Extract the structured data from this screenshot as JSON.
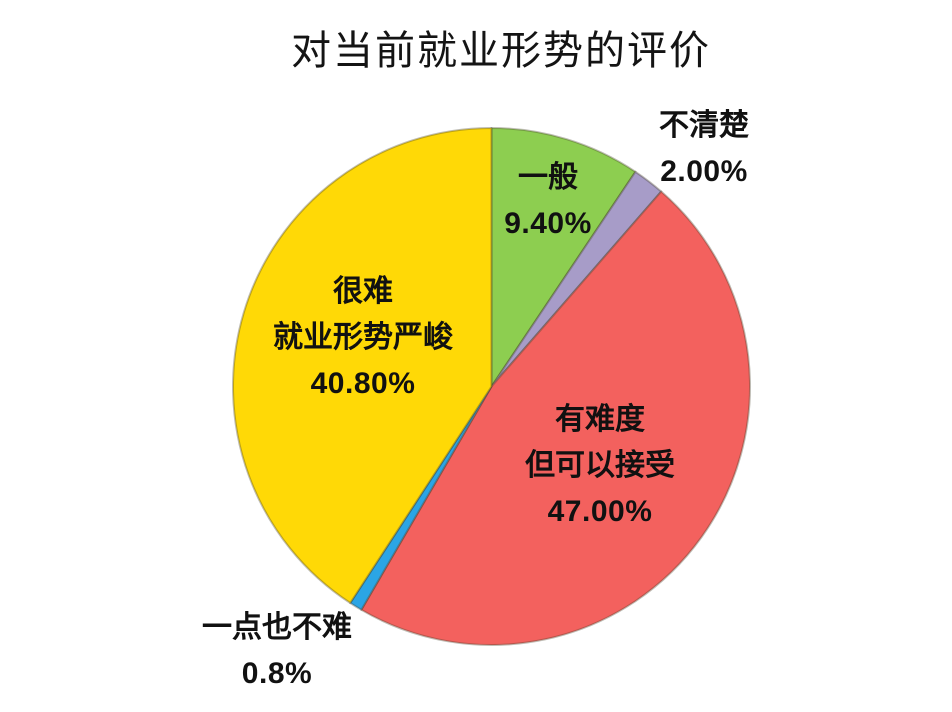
{
  "title": "对当前就业形势的评价",
  "chart_data": {
    "type": "pie",
    "title": "对当前就业形势的评价",
    "unit": "percent",
    "direction": "clockwise",
    "start_angle_deg": 0,
    "outline_color": "rgba(70,62,40,0.35)",
    "slices": [
      {
        "id": "average",
        "lines": [
          "一般"
        ],
        "pct": "9.40%",
        "value": 9.4,
        "color": "#8DCE50",
        "label_placement": "inside"
      },
      {
        "id": "unclear",
        "lines": [
          "不清楚"
        ],
        "pct": "2.00%",
        "value": 2.0,
        "color": "#A79CC8",
        "label_placement": "outside"
      },
      {
        "id": "difficult-but-acceptable",
        "lines": [
          "有难度",
          "但可以接受"
        ],
        "pct": "47.00%",
        "value": 47.0,
        "color": "#F3615E",
        "label_placement": "inside"
      },
      {
        "id": "not-difficult-at-all",
        "lines": [
          "一点也不难"
        ],
        "pct": "0.8%",
        "value": 0.8,
        "color": "#2BA5E5",
        "label_placement": "outside"
      },
      {
        "id": "very-difficult",
        "lines": [
          "很难",
          "就业形势严峻"
        ],
        "pct": "40.80%",
        "value": 40.8,
        "color": "#FFD906",
        "label_placement": "inside"
      }
    ]
  }
}
